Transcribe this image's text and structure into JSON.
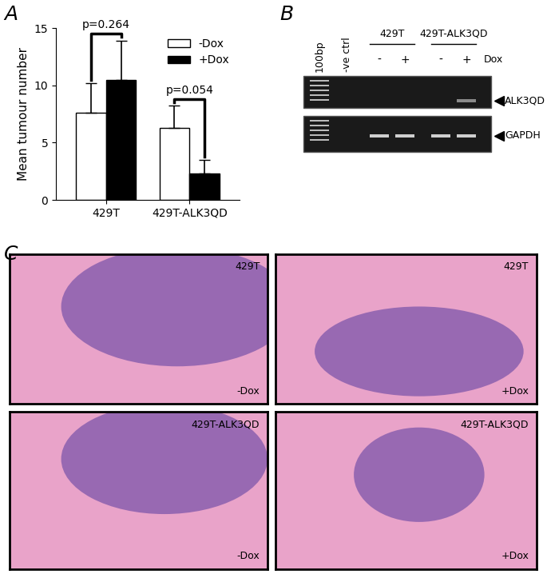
{
  "panel_labels": [
    "A",
    "B",
    "C"
  ],
  "chart_data": {
    "type": "bar",
    "categories": [
      "429T",
      "429T-ALK3QD"
    ],
    "y_label": "Mean tumour number",
    "series": [
      {
        "name": "-Dox",
        "color": "#ffffff",
        "values": [
          7.6,
          6.3
        ],
        "error": [
          2.6,
          1.9
        ]
      },
      {
        "name": "+Dox",
        "color": "#000000",
        "values": [
          10.5,
          2.3
        ],
        "error": [
          3.4,
          1.2
        ]
      }
    ],
    "annotations": [
      {
        "text": "p=0.264",
        "category": "429T"
      },
      {
        "text": "p=0.054",
        "category": "429T-ALK3QD"
      }
    ],
    "ylim": [
      0,
      15
    ],
    "yticks": [
      0,
      5,
      10,
      15
    ],
    "legend": "upper right"
  },
  "gel": {
    "ladder": "100bp",
    "control": "-ve ctrl",
    "groups": [
      {
        "name": "429T",
        "dox": [
          "-",
          "+"
        ]
      },
      {
        "name": "429T-ALK3QD",
        "dox": [
          "-",
          "+"
        ]
      }
    ],
    "dox_label": "Dox",
    "bands": [
      {
        "name": "ALK3QD",
        "lanes": [
          5
        ]
      },
      {
        "name": "GAPDH",
        "lanes": [
          2,
          3,
          4,
          5
        ]
      }
    ]
  },
  "histology": [
    {
      "cell": "429T",
      "condition": "-Dox"
    },
    {
      "cell": "429T",
      "condition": "+Dox"
    },
    {
      "cell": "429T-ALK3QD",
      "condition": "-Dox"
    },
    {
      "cell": "429T-ALK3QD",
      "condition": "+Dox"
    }
  ]
}
